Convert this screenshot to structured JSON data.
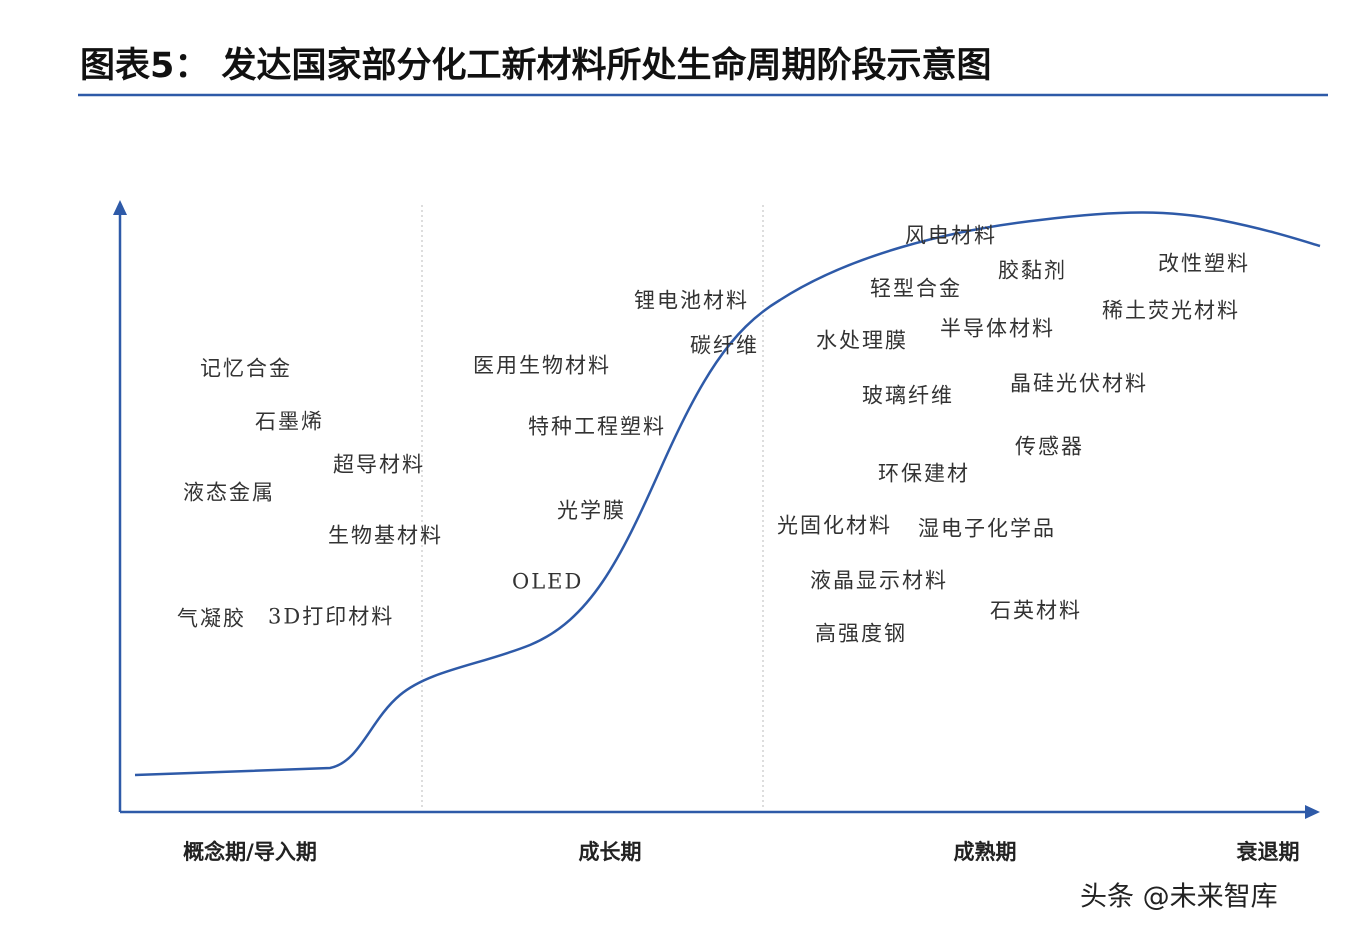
{
  "header": {
    "title": "图表5：  发达国家部分化工新材料所处生命周期阶段示意图"
  },
  "stages": [
    "概念期/导入期",
    "成长期",
    "成熟期",
    "衰退期"
  ],
  "items": [
    "记忆合金",
    "石墨烯",
    "超导材料",
    "液态金属",
    "生物基材料",
    "气凝胶",
    "3D打印材料",
    "医用生物材料",
    "特种工程塑料",
    "光学膜",
    "OLED",
    "锂电池材料",
    "碳纤维",
    "风电材料",
    "胶黏剂",
    "改性塑料",
    "轻型合金",
    "稀土荧光材料",
    "水处理膜",
    "半导体材料",
    "玻璃纤维",
    "晶硅光伏材料",
    "传感器",
    "环保建材",
    "光固化材料",
    "湿电子化学品",
    "液晶显示材料",
    "石英材料",
    "高强度钢"
  ],
  "watermark": "头条 @未来智库"
}
